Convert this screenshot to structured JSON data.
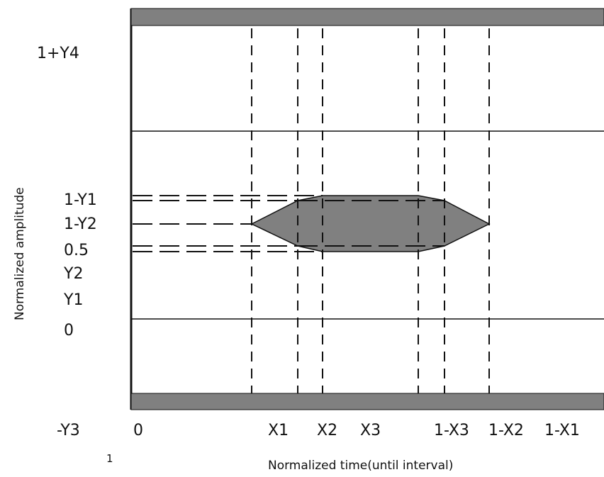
{
  "diagram": {
    "y_axis_title": "Normalized amplitude",
    "x_axis_title": "Normalized time(until interval)",
    "stray_mark": "1",
    "y_labels": [
      "1+Y4",
      "1-Y1",
      "1-Y2",
      "0.5",
      "Y2",
      "Y1",
      "0",
      "-Y3"
    ],
    "x_labels": [
      "0",
      "X1",
      "X2",
      "X3",
      "1-X3",
      "1-X2",
      "1-X1"
    ],
    "colors": {
      "bar_fill": "#808080",
      "mask_fill": "#808080",
      "line": "#111111",
      "background": "#ffffff"
    }
  }
}
